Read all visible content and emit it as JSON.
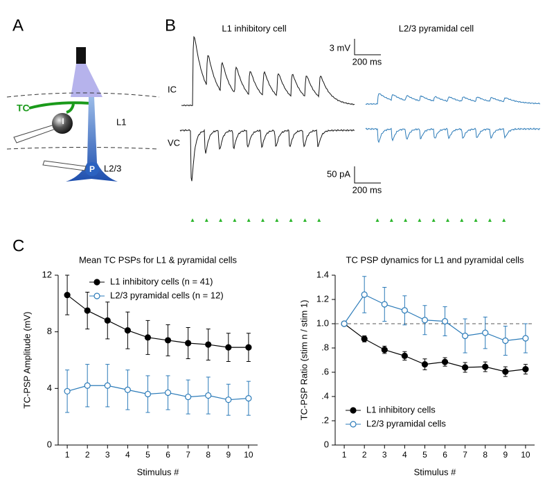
{
  "panel_labels": [
    "A",
    "B",
    "C"
  ],
  "diagram": {
    "labels": {
      "tc": "TC",
      "i": "I",
      "p": "P",
      "l1": "L1",
      "l23": "L2/3"
    }
  },
  "traces": {
    "titles": [
      "L1 inhibitory cell",
      "L2/3 pyramidal cell"
    ],
    "rows": [
      "IC",
      "VC"
    ],
    "scale_bars": [
      [
        "3 mV",
        "200 ms"
      ],
      [
        "50 pA",
        "200 ms"
      ]
    ]
  },
  "chart_data": [
    {
      "type": "line",
      "title": "Mean TC PSPs for L1 & pyramidal cells",
      "x_label": "Stimulus #",
      "y_label": "TC-PSP Amplitude (mV)",
      "x": [
        1,
        2,
        3,
        4,
        5,
        6,
        7,
        8,
        9,
        10
      ],
      "xlim": [
        0.55,
        10.45
      ],
      "xticks": [
        1,
        2,
        3,
        4,
        5,
        6,
        7,
        8,
        9,
        10
      ],
      "ylim": [
        0,
        12
      ],
      "yticks": [
        0,
        4,
        8,
        12
      ],
      "legend": "upper right",
      "series": [
        {
          "name": "L1 inhibitory cells (n = 41)",
          "color": "#000000",
          "marker": "filled",
          "values": [
            10.6,
            9.5,
            8.8,
            8.1,
            7.6,
            7.4,
            7.2,
            7.1,
            6.9,
            6.9
          ],
          "errors": [
            1.4,
            1.3,
            1.3,
            1.3,
            1.2,
            1.1,
            1.1,
            1.1,
            1.0,
            1.0
          ]
        },
        {
          "name": "L2/3 pyramidal cells (n = 12)",
          "color": "#2a7ab8",
          "marker": "open",
          "values": [
            3.8,
            4.2,
            4.2,
            3.9,
            3.6,
            3.7,
            3.4,
            3.5,
            3.2,
            3.3
          ],
          "errors": [
            1.5,
            1.5,
            1.5,
            1.4,
            1.3,
            1.2,
            1.2,
            1.3,
            1.1,
            1.2
          ]
        }
      ]
    },
    {
      "type": "line",
      "title": "TC PSP dynamics for L1 and pyramidal cells",
      "x_label": "Stimulus #",
      "y_label": "TC-PSP Ratio (stim n / stim 1)",
      "x": [
        1,
        2,
        3,
        4,
        5,
        6,
        7,
        8,
        9,
        10
      ],
      "xlim": [
        0.55,
        10.45
      ],
      "xticks": [
        1,
        2,
        3,
        4,
        5,
        6,
        7,
        8,
        9,
        10
      ],
      "ylim": [
        0,
        1.4
      ],
      "yticks": [
        0,
        {
          "value": 0.2,
          "label": ".2"
        },
        {
          "value": 0.4,
          "label": ".4"
        },
        {
          "value": 0.6,
          "label": ".6"
        },
        {
          "value": 0.8,
          "label": ".8"
        },
        {
          "value": 1,
          "label": "1.0"
        },
        1.2,
        1.4
      ],
      "reference_line": 1,
      "legend": "lower left",
      "series": [
        {
          "name": "L1 inhibitory cells",
          "color": "#000000",
          "marker": "filled",
          "values": [
            1,
            0.875,
            0.785,
            0.735,
            0.665,
            0.685,
            0.64,
            0.645,
            0.605,
            0.625
          ],
          "errors": [
            0,
            0.025,
            0.03,
            0.035,
            0.045,
            0.035,
            0.04,
            0.04,
            0.04,
            0.04
          ]
        },
        {
          "name": "L2/3 pyramidal cells",
          "color": "#2a7ab8",
          "marker": "open",
          "values": [
            1,
            1.24,
            1.16,
            1.11,
            1.03,
            1.02,
            0.9,
            0.925,
            0.86,
            0.88
          ],
          "errors": [
            0,
            0.15,
            0.14,
            0.12,
            0.12,
            0.12,
            0.14,
            0.13,
            0.12,
            0.12
          ]
        }
      ]
    }
  ]
}
